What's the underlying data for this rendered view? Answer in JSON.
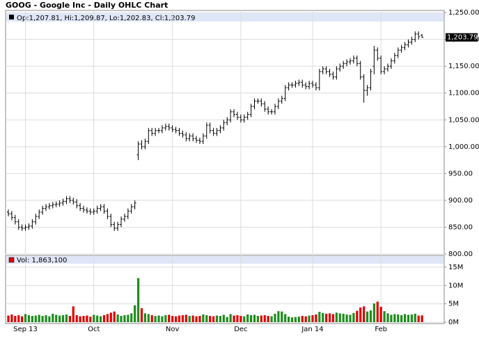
{
  "chart_data": {
    "type": "ohlc",
    "title": "GOOG - Google Inc - Daily OHLC Chart",
    "ohlc_label": "Op:1,207.81, Hi:1,209.87, Lo:1,202.83, Cl:1,203.79",
    "volume_label": "Vol: 1,863,100",
    "last_label": "1,203.79",
    "color": "#000000",
    "up_color": "#1e8c1e",
    "down_color": "#e00000",
    "grid": true,
    "categories": [
      null,
      null,
      null,
      null,
      null,
      "Sep 13",
      null,
      null,
      null,
      null,
      null,
      null,
      null,
      null,
      null,
      null,
      null,
      null,
      null,
      null,
      null,
      null,
      null,
      null,
      null,
      "Oct",
      null,
      null,
      null,
      null,
      null,
      null,
      null,
      null,
      null,
      null,
      null,
      null,
      null,
      null,
      null,
      null,
      null,
      null,
      null,
      null,
      null,
      null,
      "Nov",
      null,
      null,
      null,
      null,
      null,
      null,
      null,
      null,
      null,
      null,
      null,
      null,
      null,
      null,
      null,
      null,
      null,
      null,
      null,
      "Dec",
      null,
      null,
      null,
      null,
      null,
      null,
      null,
      null,
      null,
      null,
      null,
      null,
      null,
      null,
      null,
      null,
      null,
      null,
      null,
      null,
      "Jan 14",
      null,
      null,
      null,
      null,
      null,
      null,
      null,
      null,
      null,
      null,
      null,
      null,
      null,
      null,
      null,
      null,
      null,
      null,
      null,
      "Feb",
      null,
      null,
      null,
      null,
      null,
      null,
      null,
      null,
      null,
      null,
      null,
      null
    ],
    "open": [
      878,
      875,
      868,
      860,
      850,
      848,
      850,
      852,
      860,
      870,
      878,
      885,
      888,
      890,
      892,
      893,
      895,
      898,
      903,
      900,
      897,
      890,
      885,
      882,
      880,
      878,
      880,
      885,
      888,
      880,
      870,
      855,
      848,
      855,
      865,
      870,
      880,
      888,
      985,
      1005,
      1000,
      1010,
      1030,
      1025,
      1030,
      1030,
      1035,
      1038,
      1035,
      1032,
      1030,
      1025,
      1022,
      1015,
      1020,
      1015,
      1012,
      1010,
      1020,
      1040,
      1030,
      1025,
      1030,
      1035,
      1045,
      1050,
      1065,
      1060,
      1055,
      1050,
      1055,
      1060,
      1075,
      1085,
      1085,
      1080,
      1070,
      1065,
      1065,
      1075,
      1085,
      1090,
      1110,
      1115,
      1115,
      1118,
      1120,
      1115,
      1112,
      1118,
      1115,
      1110,
      1140,
      1145,
      1140,
      1135,
      1130,
      1145,
      1150,
      1155,
      1158,
      1160,
      1165,
      1155,
      1130,
      1105,
      1110,
      1150,
      1180,
      1165,
      1140,
      1145,
      1150,
      1160,
      1170,
      1180,
      1185,
      1190,
      1195,
      1200,
      1210,
      1207.81
    ],
    "high": [
      883,
      880,
      873,
      865,
      855,
      855,
      857,
      865,
      875,
      883,
      890,
      893,
      895,
      897,
      898,
      900,
      903,
      908,
      908,
      905,
      902,
      895,
      890,
      887,
      885,
      885,
      890,
      893,
      893,
      885,
      875,
      860,
      860,
      870,
      875,
      885,
      893,
      900,
      1010,
      1012,
      1015,
      1035,
      1035,
      1035,
      1035,
      1040,
      1043,
      1043,
      1040,
      1037,
      1035,
      1030,
      1027,
      1025,
      1025,
      1020,
      1017,
      1025,
      1045,
      1045,
      1035,
      1035,
      1040,
      1050,
      1055,
      1070,
      1070,
      1065,
      1060,
      1060,
      1065,
      1080,
      1090,
      1090,
      1090,
      1085,
      1075,
      1070,
      1080,
      1090,
      1095,
      1115,
      1120,
      1120,
      1123,
      1125,
      1125,
      1120,
      1123,
      1123,
      1120,
      1145,
      1150,
      1150,
      1145,
      1140,
      1150,
      1155,
      1160,
      1163,
      1165,
      1170,
      1170,
      1160,
      1135,
      1115,
      1145,
      1188,
      1185,
      1170,
      1150,
      1155,
      1165,
      1175,
      1185,
      1190,
      1195,
      1200,
      1205,
      1215,
      1215,
      1209.87
    ],
    "low": [
      870,
      863,
      855,
      845,
      843,
      843,
      845,
      847,
      855,
      865,
      873,
      880,
      883,
      885,
      887,
      888,
      890,
      893,
      895,
      892,
      885,
      880,
      877,
      875,
      873,
      873,
      875,
      880,
      875,
      865,
      850,
      843,
      843,
      850,
      860,
      865,
      875,
      883,
      975,
      995,
      995,
      1005,
      1020,
      1020,
      1025,
      1025,
      1030,
      1030,
      1027,
      1025,
      1020,
      1017,
      1010,
      1010,
      1010,
      1007,
      1005,
      1005,
      1015,
      1025,
      1020,
      1020,
      1025,
      1030,
      1040,
      1045,
      1055,
      1050,
      1045,
      1045,
      1050,
      1055,
      1070,
      1080,
      1075,
      1065,
      1060,
      1060,
      1060,
      1070,
      1080,
      1085,
      1105,
      1110,
      1110,
      1113,
      1110,
      1107,
      1107,
      1110,
      1105,
      1105,
      1135,
      1135,
      1130,
      1125,
      1125,
      1140,
      1145,
      1150,
      1153,
      1155,
      1150,
      1125,
      1082,
      1095,
      1105,
      1135,
      1160,
      1135,
      1135,
      1140,
      1145,
      1155,
      1165,
      1175,
      1180,
      1185,
      1190,
      1195,
      1200,
      1202.83
    ],
    "close": [
      875,
      868,
      860,
      850,
      848,
      850,
      852,
      860,
      870,
      878,
      885,
      888,
      890,
      892,
      893,
      895,
      898,
      903,
      900,
      897,
      890,
      885,
      882,
      880,
      878,
      880,
      885,
      888,
      880,
      870,
      855,
      848,
      855,
      865,
      870,
      880,
      888,
      895,
      1005,
      1000,
      1010,
      1030,
      1025,
      1030,
      1030,
      1035,
      1038,
      1035,
      1032,
      1030,
      1025,
      1022,
      1015,
      1020,
      1015,
      1012,
      1010,
      1020,
      1040,
      1030,
      1025,
      1030,
      1035,
      1045,
      1050,
      1065,
      1060,
      1055,
      1050,
      1055,
      1060,
      1075,
      1085,
      1085,
      1080,
      1070,
      1065,
      1065,
      1075,
      1085,
      1090,
      1110,
      1115,
      1115,
      1118,
      1120,
      1115,
      1112,
      1118,
      1115,
      1110,
      1140,
      1145,
      1140,
      1135,
      1130,
      1145,
      1150,
      1155,
      1158,
      1160,
      1165,
      1155,
      1130,
      1105,
      1110,
      1140,
      1180,
      1165,
      1140,
      1145,
      1150,
      1160,
      1170,
      1180,
      1185,
      1190,
      1195,
      1200,
      1210,
      1205,
      1203.79
    ],
    "volume": [
      1800000,
      2100000,
      1700000,
      1900000,
      1600000,
      2200000,
      1900000,
      1700000,
      1800000,
      2000000,
      1700000,
      1900000,
      1600000,
      2300000,
      2000000,
      1800000,
      1900000,
      2100000,
      1700000,
      4300000,
      1900000,
      1600000,
      1700000,
      1800000,
      1500000,
      2000000,
      1800000,
      1600000,
      1900000,
      2200000,
      2600000,
      2900000,
      2100000,
      1700000,
      1900000,
      2000000,
      2400000,
      4600000,
      12000000,
      3800000,
      2400000,
      2200000,
      1900000,
      1700000,
      1800000,
      1600000,
      1900000,
      2000000,
      1700000,
      1600000,
      1800000,
      1900000,
      2000000,
      1700000,
      1800000,
      1600000,
      1700000,
      2100000,
      1900000,
      1700000,
      1600000,
      1800000,
      1700000,
      2000000,
      1400000,
      2200000,
      1800000,
      1900000,
      1700000,
      1600000,
      2100000,
      1900000,
      2000000,
      1700000,
      1800000,
      1900000,
      1700000,
      1600000,
      2300000,
      3000000,
      2900000,
      2200000,
      1500000,
      1300000,
      1400000,
      1500000,
      1700000,
      1600000,
      1800000,
      1900000,
      2100000,
      2800000,
      2500000,
      2300000,
      2400000,
      2200000,
      2600000,
      2400000,
      2300000,
      2100000,
      2000000,
      2500000,
      3100000,
      4000000,
      4300000,
      2900000,
      3200000,
      5100000,
      5600000,
      4200000,
      3000000,
      2400000,
      2000000,
      2200000,
      2100000,
      1900000,
      2200000,
      2000000,
      2100000,
      2300000,
      1800000,
      1863100
    ],
    "ylim": [
      800,
      1254
    ],
    "yticks": [
      {
        "value": 800,
        "label": "800.00"
      },
      {
        "value": 850,
        "label": "850.00"
      },
      {
        "value": 900,
        "label": "900.00"
      },
      {
        "value": 950,
        "label": "950.00"
      },
      {
        "value": 1000,
        "label": "1,000.00"
      },
      {
        "value": 1050,
        "label": "1,050.00"
      },
      {
        "value": 1100,
        "label": "1,100.00"
      },
      {
        "value": 1150,
        "label": "1,150.00"
      },
      {
        "value": 1200,
        "label": "1,200.00"
      },
      {
        "value": 1250,
        "label": "1,250.00"
      }
    ],
    "y2lim": [
      0,
      18200000
    ],
    "y2ticks": [
      {
        "value": 0,
        "label": "0M"
      },
      {
        "value": 5000000,
        "label": "5M"
      },
      {
        "value": 10000000,
        "label": "10M"
      },
      {
        "value": 15000000,
        "label": "15M"
      }
    ]
  }
}
